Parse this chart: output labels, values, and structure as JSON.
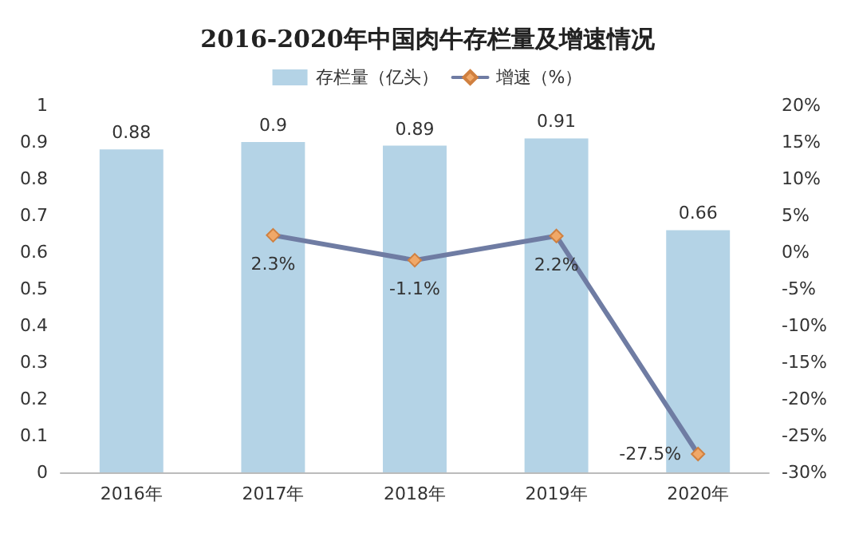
{
  "chart_data": {
    "type": "bar",
    "title": "2016-2020年中国肉牛存栏量及增速情况",
    "categories": [
      "2016年",
      "2017年",
      "2018年",
      "2019年",
      "2020年"
    ],
    "series": [
      {
        "name": "存栏量（亿头）",
        "color": "#b4d3e6",
        "values": [
          0.88,
          0.9,
          0.89,
          0.91,
          0.66
        ]
      },
      {
        "name": "增速（%）",
        "type": "line",
        "axis": "y2",
        "color": "#6f7ca3",
        "marker": "diamond",
        "values": [
          null,
          2.3,
          -1.1,
          2.2,
          -27.5
        ],
        "value_labels": [
          null,
          "2.3%",
          "-1.1%",
          "2.2%",
          "-27.5%"
        ]
      }
    ],
    "data_labels": true,
    "ylim": [
      0,
      1
    ],
    "yticks": [
      0,
      0.1,
      0.2,
      0.3,
      0.4,
      0.5,
      0.6,
      0.7,
      0.8,
      0.9,
      1
    ],
    "y2lim": [
      -30,
      20
    ],
    "y2ticks": [
      {
        "value": -30,
        "label": "-30%"
      },
      {
        "value": -25,
        "label": "-25%"
      },
      {
        "value": -20,
        "label": "-20%"
      },
      {
        "value": -15,
        "label": "-15%"
      },
      {
        "value": -10,
        "label": "-10%"
      },
      {
        "value": -5,
        "label": "-5%"
      },
      {
        "value": 0,
        "label": "0%"
      },
      {
        "value": 5,
        "label": "5%"
      },
      {
        "value": 10,
        "label": "10%"
      },
      {
        "value": 15,
        "label": "15%"
      },
      {
        "value": 20,
        "label": "20%"
      }
    ],
    "legend": "top"
  }
}
